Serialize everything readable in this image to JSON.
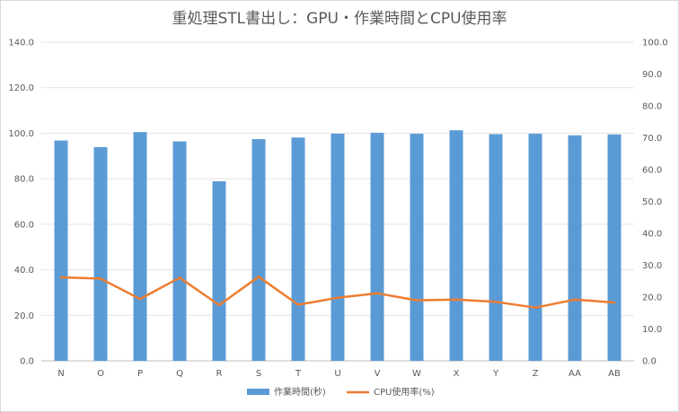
{
  "chart_data": {
    "type": "bar",
    "title": "重処理STL書出し：GPU・作業時間とCPU使用率",
    "categories": [
      "N",
      "O",
      "P",
      "Q",
      "R",
      "S",
      "T",
      "U",
      "V",
      "W",
      "X",
      "Y",
      "Z",
      "AA",
      "AB"
    ],
    "series": [
      {
        "name": "作業時間(秒)",
        "type": "bar",
        "axis": "left",
        "color": "#5b9bd5",
        "values": [
          96.8,
          93.9,
          100.5,
          96.4,
          78.9,
          97.4,
          98.1,
          99.8,
          100.2,
          99.8,
          101.3,
          99.6,
          99.8,
          99.1,
          99.5
        ]
      },
      {
        "name": "CPU使用率(%)",
        "type": "line",
        "axis": "right",
        "color": "#ed7d31",
        "values": [
          26.2,
          25.8,
          19.4,
          26.1,
          17.5,
          26.4,
          17.6,
          19.8,
          21.2,
          19.0,
          19.2,
          18.5,
          16.7,
          19.2,
          18.3
        ]
      }
    ],
    "y_left": {
      "min": 0,
      "max": 140,
      "step": 20,
      "tick_labels": [
        "0.0",
        "20.0",
        "40.0",
        "60.0",
        "80.0",
        "100.0",
        "120.0",
        "140.0"
      ]
    },
    "y_right": {
      "min": 0,
      "max": 100,
      "step": 10,
      "tick_labels": [
        "0.0",
        "10.0",
        "20.0",
        "30.0",
        "40.0",
        "50.0",
        "60.0",
        "70.0",
        "80.0",
        "90.0",
        "100.0"
      ]
    },
    "grid": true,
    "legend_position": "bottom"
  }
}
